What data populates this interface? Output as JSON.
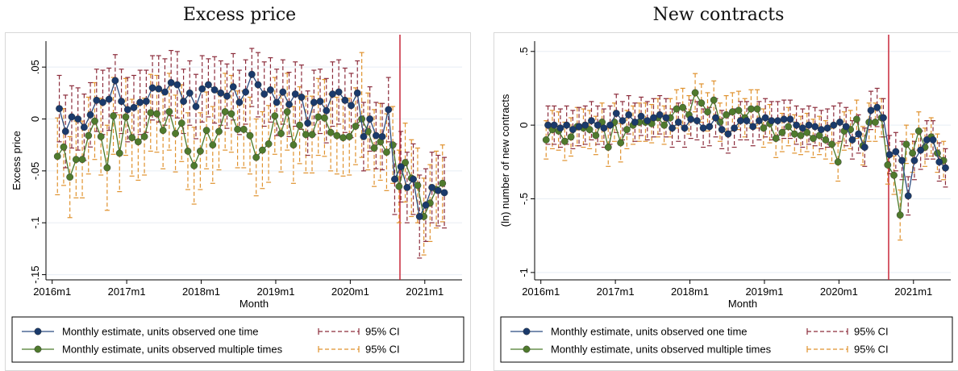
{
  "chart_data": [
    {
      "type": "line",
      "title": "Excess price",
      "xlabel": "Month",
      "ylabel": "Excess price",
      "x_tick_labels": [
        "2016m1",
        "2017m1",
        "2018m1",
        "2019m1",
        "2020m1",
        "2021m1"
      ],
      "y_tick_labels": [
        "-.15",
        "-.1",
        "-.05",
        "0",
        ".05"
      ],
      "y_ticks": [
        -0.15,
        -0.1,
        -0.05,
        0,
        0.05
      ],
      "ylim": [
        -0.155,
        0.075
      ],
      "x_start": "2016m2",
      "vline_at": "2020m9",
      "legend": {
        "placement": "bottom",
        "series_one_label": "Monthly estimate, units observed  one time",
        "series_multi_label": "Monthly estimate, units observed multiple times",
        "ci_label_one": "95% CI",
        "ci_label_multi": "95% CI"
      },
      "series": [
        {
          "name": "Monthly estimate, units observed  one time",
          "values": [
            0.01,
            -0.012,
            0.002,
            0.0,
            -0.008,
            0.004,
            0.018,
            0.016,
            0.019,
            0.037,
            0.017,
            0.009,
            0.011,
            0.016,
            0.017,
            0.03,
            0.029,
            0.026,
            0.035,
            0.033,
            0.017,
            0.025,
            0.012,
            0.029,
            0.033,
            0.028,
            0.025,
            0.022,
            0.031,
            0.016,
            0.026,
            0.043,
            0.033,
            0.024,
            0.028,
            0.016,
            0.026,
            0.014,
            0.024,
            0.021,
            -0.004,
            0.016,
            0.017,
            0.008,
            0.024,
            0.026,
            0.018,
            0.013,
            0.025,
            -0.017,
            0.0,
            -0.016,
            -0.017,
            0.009,
            -0.058,
            -0.046,
            -0.066,
            -0.058,
            -0.094,
            -0.083,
            -0.066,
            -0.069,
            -0.071
          ],
          "ci_low": [
            -0.022,
            -0.047,
            -0.028,
            -0.03,
            -0.04,
            -0.027,
            -0.012,
            -0.015,
            -0.011,
            0.006,
            -0.014,
            -0.022,
            -0.02,
            -0.015,
            -0.013,
            -0.001,
            -0.003,
            -0.006,
            0.003,
            0.001,
            -0.014,
            -0.006,
            -0.019,
            -0.003,
            0.002,
            -0.004,
            -0.006,
            -0.009,
            -0.001,
            -0.015,
            -0.005,
            0.012,
            0.002,
            -0.007,
            -0.003,
            -0.016,
            -0.005,
            -0.017,
            -0.007,
            -0.01,
            -0.035,
            -0.015,
            -0.014,
            -0.023,
            -0.007,
            -0.005,
            -0.013,
            -0.018,
            -0.006,
            -0.05,
            -0.031,
            -0.048,
            -0.049,
            -0.022,
            -0.092,
            -0.08,
            -0.1,
            -0.092,
            -0.134,
            -0.118,
            -0.1,
            -0.103,
            -0.105
          ],
          "ci_high": [
            0.042,
            0.023,
            0.032,
            0.03,
            0.024,
            0.035,
            0.048,
            0.047,
            0.049,
            0.062,
            0.048,
            0.04,
            0.042,
            0.047,
            0.047,
            0.061,
            0.061,
            0.058,
            0.066,
            0.065,
            0.048,
            0.056,
            0.043,
            0.061,
            0.058,
            0.06,
            0.056,
            0.053,
            0.063,
            0.047,
            0.057,
            0.068,
            0.064,
            0.055,
            0.059,
            0.048,
            0.057,
            0.045,
            0.055,
            0.052,
            0.027,
            0.047,
            0.048,
            0.039,
            0.055,
            0.057,
            0.049,
            0.044,
            0.056,
            0.016,
            0.031,
            0.016,
            0.015,
            0.04,
            -0.024,
            -0.012,
            -0.032,
            -0.024,
            -0.054,
            -0.048,
            -0.032,
            -0.035,
            -0.037
          ]
        },
        {
          "name": "Monthly estimate, units observed multiple times",
          "values": [
            -0.036,
            -0.027,
            -0.056,
            -0.039,
            -0.039,
            -0.016,
            -0.002,
            -0.017,
            -0.047,
            0.003,
            -0.033,
            0.002,
            -0.018,
            -0.022,
            -0.017,
            0.006,
            0.005,
            -0.011,
            0.007,
            -0.014,
            -0.004,
            -0.031,
            -0.045,
            -0.031,
            -0.011,
            -0.025,
            -0.012,
            0.007,
            0.005,
            -0.01,
            -0.01,
            -0.016,
            -0.037,
            -0.03,
            -0.024,
            0.003,
            -0.014,
            0.007,
            -0.025,
            -0.006,
            -0.015,
            -0.015,
            0.002,
            0.001,
            -0.013,
            -0.016,
            -0.018,
            -0.017,
            -0.007,
            0.0,
            -0.012,
            -0.028,
            -0.022,
            -0.032,
            -0.025,
            -0.065,
            -0.042,
            -0.057,
            -0.064,
            -0.094,
            -0.081,
            -0.068,
            -0.062
          ],
          "ci_low": [
            -0.073,
            -0.064,
            -0.095,
            -0.076,
            -0.076,
            -0.053,
            -0.039,
            -0.054,
            -0.088,
            -0.034,
            -0.07,
            -0.035,
            -0.055,
            -0.059,
            -0.054,
            -0.031,
            -0.032,
            -0.048,
            -0.03,
            -0.051,
            -0.041,
            -0.068,
            -0.082,
            -0.068,
            -0.048,
            -0.062,
            -0.049,
            -0.03,
            -0.032,
            -0.047,
            -0.047,
            -0.053,
            -0.074,
            -0.067,
            -0.061,
            -0.034,
            -0.051,
            -0.03,
            -0.062,
            -0.043,
            -0.052,
            -0.052,
            -0.035,
            -0.036,
            -0.05,
            -0.053,
            -0.055,
            -0.054,
            -0.044,
            -0.037,
            -0.049,
            -0.065,
            -0.059,
            -0.069,
            -0.062,
            -0.1,
            -0.08,
            -0.094,
            -0.1,
            -0.131,
            -0.118,
            -0.105,
            -0.099
          ],
          "ci_high": [
            0.001,
            0.01,
            -0.017,
            -0.002,
            -0.002,
            0.021,
            0.035,
            0.02,
            -0.006,
            0.04,
            0.004,
            0.039,
            0.019,
            0.015,
            0.02,
            0.043,
            0.042,
            0.026,
            0.044,
            0.023,
            0.033,
            0.006,
            -0.008,
            0.006,
            0.026,
            0.012,
            0.025,
            0.044,
            0.042,
            0.027,
            0.027,
            0.021,
            0.0,
            0.007,
            0.013,
            0.04,
            0.023,
            0.044,
            0.012,
            0.031,
            0.022,
            0.022,
            0.039,
            0.038,
            0.024,
            0.021,
            0.019,
            0.02,
            0.03,
            0.064,
            0.025,
            0.009,
            0.015,
            0.005,
            0.012,
            -0.03,
            -0.004,
            -0.02,
            -0.028,
            -0.057,
            -0.044,
            -0.031,
            -0.025
          ]
        }
      ]
    },
    {
      "type": "line",
      "title": "New contracts",
      "xlabel": "Month",
      "ylabel": "(ln) number of new contracts",
      "x_tick_labels": [
        "2016m1",
        "2017m1",
        "2018m1",
        "2019m1",
        "2020m1",
        "2021m1"
      ],
      "y_tick_labels": [
        "-1",
        "-.5",
        "0",
        ".5"
      ],
      "y_ticks": [
        -1,
        -0.5,
        0,
        0.5
      ],
      "ylim": [
        -1.05,
        0.57
      ],
      "x_start": "2016m2",
      "vline_at": "2020m9",
      "legend": {
        "placement": "bottom",
        "series_one_label": "Monthly estimate, units observed one time",
        "series_multi_label": "Monthly estimate, units observed multiple times",
        "ci_label_one": "95% CI",
        "ci_label_multi": "95% CI"
      },
      "series": [
        {
          "name": "Monthly estimate, units observed one time",
          "values": [
            0.0,
            0.0,
            -0.02,
            0.0,
            -0.03,
            -0.01,
            0.0,
            0.03,
            0.0,
            -0.02,
            0.0,
            0.08,
            0.03,
            0.07,
            0.02,
            0.06,
            0.03,
            0.05,
            0.07,
            0.05,
            -0.02,
            0.02,
            -0.02,
            0.04,
            0.03,
            -0.02,
            -0.01,
            0.05,
            -0.03,
            -0.06,
            -0.02,
            0.03,
            0.03,
            -0.01,
            0.03,
            0.05,
            0.03,
            0.03,
            0.04,
            0.04,
            0.0,
            -0.02,
            0.0,
            -0.01,
            -0.03,
            -0.02,
            0.0,
            0.02,
            -0.01,
            -0.1,
            -0.06,
            -0.15,
            0.1,
            0.12,
            0.05,
            -0.2,
            -0.18,
            -0.24,
            -0.48,
            -0.24,
            -0.17,
            -0.1,
            -0.1,
            -0.25,
            -0.29
          ],
          "ci_low": [
            -0.13,
            -0.13,
            -0.15,
            -0.13,
            -0.16,
            -0.14,
            -0.13,
            -0.1,
            -0.13,
            -0.15,
            -0.13,
            -0.05,
            -0.1,
            -0.06,
            -0.11,
            -0.07,
            -0.1,
            -0.08,
            -0.06,
            -0.08,
            -0.15,
            -0.11,
            -0.15,
            -0.09,
            -0.1,
            -0.15,
            -0.14,
            -0.08,
            -0.16,
            -0.19,
            -0.15,
            -0.1,
            -0.1,
            -0.14,
            -0.1,
            -0.08,
            -0.1,
            -0.1,
            -0.09,
            -0.09,
            -0.13,
            -0.15,
            -0.13,
            -0.14,
            -0.16,
            -0.15,
            -0.13,
            -0.11,
            -0.14,
            -0.23,
            -0.19,
            -0.28,
            -0.03,
            -0.01,
            -0.08,
            -0.33,
            -0.31,
            -0.37,
            -0.61,
            -0.37,
            -0.3,
            -0.23,
            -0.23,
            -0.38,
            -0.42
          ],
          "ci_high": [
            0.13,
            0.13,
            0.11,
            0.13,
            0.1,
            0.12,
            0.13,
            0.16,
            0.13,
            0.11,
            0.13,
            0.21,
            0.16,
            0.2,
            0.15,
            0.19,
            0.16,
            0.18,
            0.2,
            0.18,
            0.11,
            0.15,
            0.11,
            0.17,
            0.16,
            0.11,
            0.12,
            0.18,
            0.1,
            0.07,
            0.11,
            0.16,
            0.16,
            0.12,
            0.16,
            0.18,
            0.16,
            0.16,
            0.17,
            0.17,
            0.13,
            0.11,
            0.13,
            0.12,
            0.1,
            0.11,
            0.13,
            0.15,
            0.12,
            0.03,
            0.07,
            -0.02,
            0.23,
            0.25,
            0.18,
            -0.07,
            -0.05,
            -0.11,
            -0.35,
            -0.11,
            -0.04,
            0.03,
            0.03,
            -0.12,
            -0.16
          ]
        },
        {
          "name": "Monthly estimate, units observed multiple times",
          "values": [
            -0.1,
            -0.03,
            -0.04,
            -0.11,
            -0.08,
            -0.01,
            -0.02,
            -0.03,
            -0.07,
            0.02,
            -0.15,
            0.02,
            -0.12,
            -0.03,
            0.0,
            0.02,
            0.02,
            0.01,
            0.05,
            0.0,
            0.05,
            0.11,
            0.12,
            0.07,
            0.22,
            0.15,
            0.09,
            0.17,
            0.02,
            0.07,
            0.09,
            0.1,
            0.05,
            0.11,
            0.11,
            -0.02,
            0.01,
            -0.09,
            -0.05,
            -0.01,
            -0.06,
            -0.07,
            -0.05,
            -0.09,
            -0.07,
            -0.1,
            -0.13,
            -0.25,
            -0.04,
            -0.03,
            0.04,
            -0.14,
            0.02,
            0.02,
            0.05,
            -0.27,
            -0.34,
            -0.61,
            -0.13,
            -0.19,
            -0.04,
            -0.15,
            -0.08,
            -0.19,
            -0.24
          ],
          "ci_low": [
            -0.23,
            -0.16,
            -0.17,
            -0.24,
            -0.21,
            -0.14,
            -0.15,
            -0.16,
            -0.2,
            -0.11,
            -0.28,
            -0.11,
            -0.25,
            -0.16,
            -0.13,
            -0.11,
            -0.11,
            -0.12,
            -0.08,
            -0.13,
            -0.08,
            -0.02,
            -0.01,
            -0.06,
            0.09,
            0.02,
            -0.04,
            0.04,
            -0.11,
            -0.06,
            -0.04,
            -0.03,
            -0.08,
            -0.02,
            -0.02,
            -0.15,
            -0.12,
            -0.22,
            -0.18,
            -0.14,
            -0.19,
            -0.2,
            -0.18,
            -0.22,
            -0.2,
            -0.23,
            -0.26,
            -0.38,
            -0.17,
            -0.16,
            -0.09,
            -0.27,
            -0.11,
            -0.11,
            -0.08,
            -0.4,
            -0.47,
            -0.78,
            -0.26,
            -0.32,
            -0.17,
            -0.28,
            -0.21,
            -0.32,
            -0.37
          ],
          "ci_high": [
            0.03,
            0.1,
            0.09,
            0.02,
            0.05,
            0.12,
            0.11,
            0.1,
            0.06,
            0.15,
            -0.02,
            0.15,
            0.01,
            0.1,
            0.13,
            0.15,
            0.15,
            0.14,
            0.18,
            0.13,
            0.18,
            0.24,
            0.25,
            0.2,
            0.35,
            0.28,
            0.22,
            0.3,
            0.15,
            0.2,
            0.22,
            0.23,
            0.18,
            0.24,
            0.24,
            0.11,
            0.14,
            0.04,
            0.08,
            0.12,
            0.07,
            0.06,
            0.08,
            0.04,
            0.06,
            0.03,
            0.0,
            -0.12,
            0.09,
            0.1,
            0.17,
            -0.01,
            0.15,
            0.15,
            0.18,
            -0.14,
            -0.21,
            -0.44,
            0.0,
            -0.06,
            0.09,
            -0.02,
            0.05,
            -0.06,
            -0.11
          ]
        }
      ]
    }
  ],
  "colors": {
    "series_one": "#1a3a6b",
    "series_one_line": "#2b4c80",
    "series_multi": "#4f7a2d",
    "series_multi_line": "#4a7a2a",
    "ci_one": "#8c2d3c",
    "ci_multi": "#e0922e",
    "vline": "#c8283a",
    "grid": "#e8eef4"
  }
}
